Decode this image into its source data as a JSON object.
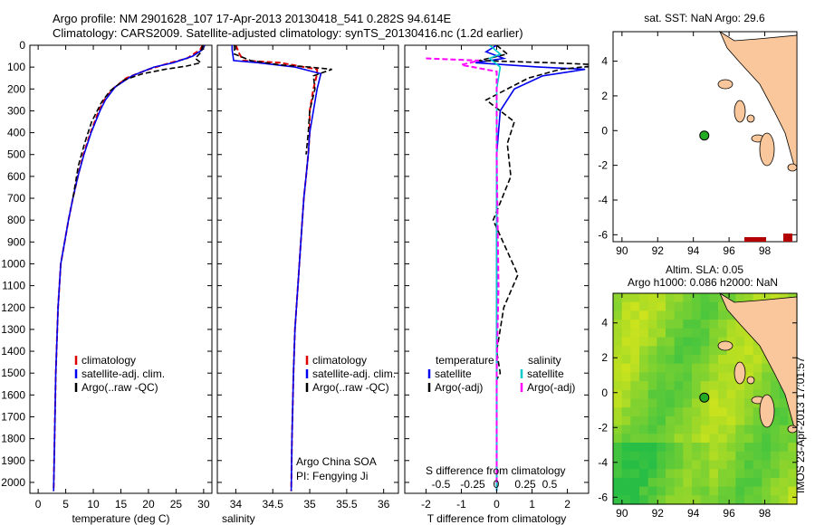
{
  "header": {
    "line1": "Argo profile: NM 2901628_107 17-Apr-2013 20130418_541 0.282S 94.614E",
    "line2": "Climatology: CARS2009. Satellite-adjusted climatology: synTS_20130416.nc (1.2d earlier)"
  },
  "side_stamp": "IMOS 23-Apr-2013 17:01:57",
  "colors": {
    "climatology": "#dd0000",
    "satellite": "#0000ee",
    "argo": "#000000",
    "sal_satellite": "#00cccc",
    "sal_argo": "#ff00ff",
    "land": "#f9c79b",
    "argo_marker": "#22aa22"
  },
  "chart_data": [
    {
      "id": "temperature",
      "type": "line",
      "xlabel": "temperature (deg C)",
      "ylabel": "",
      "xlim": [
        -1.5,
        31.5
      ],
      "ylim": [
        0,
        2050
      ],
      "xticks": [
        0,
        5,
        10,
        15,
        20,
        25,
        30
      ],
      "xtick_labels": [
        "0",
        "5",
        "10",
        "15",
        "20",
        "25",
        "30"
      ],
      "yticks": [
        0,
        100,
        200,
        300,
        400,
        500,
        600,
        700,
        800,
        900,
        1000,
        1100,
        1200,
        1300,
        1400,
        1500,
        1600,
        1700,
        1800,
        1900,
        2000
      ],
      "ytick_labels": [
        "0",
        "100",
        "200",
        "300",
        "400",
        "500",
        "600",
        "700",
        "800",
        "900",
        "1000",
        "1100",
        "1200",
        "1300",
        "1400",
        "1500",
        "1600",
        "1700",
        "1800",
        "1900",
        "2000"
      ],
      "legend": [
        "climatology",
        "satellite-adj. clim.",
        "Argo(..raw -QC)"
      ],
      "series": [
        {
          "name": "climatology",
          "style": "dashed-red",
          "x": [
            29.8,
            29.4,
            27,
            24,
            20,
            16,
            13.5,
            12,
            11,
            9.5,
            8.2,
            7.2,
            6.3,
            5.5,
            4.8,
            4.1,
            3.6,
            3.2,
            2.8
          ],
          "y": [
            0,
            20,
            60,
            80,
            110,
            150,
            200,
            250,
            300,
            400,
            500,
            600,
            700,
            800,
            900,
            1000,
            1200,
            1500,
            2040
          ]
        },
        {
          "name": "satellite-adj. clim.",
          "style": "blue",
          "x": [
            30.2,
            29.8,
            28,
            24.5,
            21,
            17,
            14,
            12.2,
            11.2,
            9.6,
            8.3,
            7.2,
            6.3,
            5.5,
            4.8,
            4.1,
            3.6,
            3.2,
            2.8
          ],
          "y": [
            0,
            20,
            50,
            80,
            100,
            140,
            190,
            250,
            300,
            400,
            500,
            600,
            700,
            800,
            900,
            1000,
            1200,
            1500,
            2040
          ]
        },
        {
          "name": "Argo(..raw -QC)",
          "style": "dashed-black",
          "x": [
            29.8,
            29.6,
            28.5,
            29.5,
            27,
            23,
            19,
            15.5,
            13,
            11.5,
            9.7,
            8.4,
            7.3,
            6.3
          ],
          "y": [
            0,
            30,
            60,
            80,
            95,
            110,
            130,
            160,
            210,
            260,
            350,
            450,
            550,
            700
          ]
        }
      ]
    },
    {
      "id": "salinity",
      "type": "line",
      "xlabel": "salinity",
      "ylabel": "",
      "xlim": [
        33.75,
        36.2
      ],
      "ylim": [
        0,
        2050
      ],
      "xticks": [
        34,
        34.5,
        35,
        35.5,
        36
      ],
      "xtick_labels": [
        "34",
        "34.5",
        "35",
        "35.5",
        "36"
      ],
      "legend": [
        "climatology",
        "satellite-adj. clim.",
        "Argo(..raw -QC)"
      ],
      "annotations": [
        "Argo China SOA",
        "PI: Fengying Ji"
      ],
      "series": [
        {
          "name": "climatology",
          "style": "dashed-red",
          "x": [
            34.0,
            34.05,
            34.1,
            34.6,
            35.1,
            35.1,
            35.05,
            35.0,
            35.0,
            34.98,
            34.95,
            34.92,
            34.88,
            34.84,
            34.8,
            34.78,
            34.76,
            34.75
          ],
          "y": [
            0,
            40,
            70,
            80,
            110,
            130,
            200,
            300,
            400,
            500,
            600,
            700,
            900,
            1100,
            1300,
            1500,
            1800,
            2040
          ]
        },
        {
          "name": "satellite-adj. clim.",
          "style": "blue",
          "x": [
            33.95,
            33.95,
            33.97,
            34.3,
            34.8,
            35.15,
            35.1,
            35.05,
            35.0,
            34.98,
            34.95,
            34.92,
            34.88,
            34.84,
            34.8,
            34.78,
            34.76,
            34.75
          ],
          "y": [
            0,
            20,
            70,
            80,
            100,
            130,
            200,
            300,
            400,
            500,
            600,
            700,
            900,
            1100,
            1300,
            1500,
            1800,
            2040
          ]
        },
        {
          "name": "Argo(..raw -QC)",
          "style": "dashed-black",
          "x": [
            33.98,
            33.98,
            34.2,
            34.6,
            35.0,
            35.3,
            35.05,
            35.07,
            35.0,
            34.98,
            34.95
          ],
          "y": [
            0,
            40,
            70,
            90,
            100,
            110,
            140,
            200,
            300,
            400,
            500
          ]
        }
      ]
    },
    {
      "id": "differences",
      "type": "line",
      "xlabel_bottom": "T difference from climatology",
      "xlabel_top": "S difference from climatology",
      "xlim": [
        -2.6,
        2.6
      ],
      "ylim": [
        0,
        2050
      ],
      "xticks_T": [
        -2,
        -1,
        0,
        1,
        2
      ],
      "xtick_labels_T": [
        "-2",
        "-1",
        "0",
        "1",
        "2"
      ],
      "xtick_labels_S": [
        "-0.5",
        "-0.25",
        "0",
        "0.25",
        "0.5"
      ],
      "legend_titles": [
        "temperature",
        "salinity"
      ],
      "legend": [
        "satellite",
        "Argo(-adj)",
        "satellite",
        "Argo(-adj)"
      ],
      "series": [
        {
          "name": "T satellite",
          "style": "blue",
          "x": [
            0,
            -0.3,
            0.2,
            -0.6,
            1.2,
            2.5,
            1.3,
            0.5,
            0.1,
            0.0,
            0.0,
            0.0,
            0.0
          ],
          "y": [
            0,
            30,
            60,
            80,
            100,
            110,
            140,
            200,
            300,
            500,
            1000,
            1500,
            2040
          ]
        },
        {
          "name": "T Argo(-adj)",
          "style": "dashed-black",
          "x": [
            0,
            0.3,
            -0.5,
            1.5,
            3.0,
            1.8,
            0.9,
            -0.3,
            0.5,
            0.3,
            0.4,
            -0.1,
            0.6,
            0.2,
            0.0,
            0.1,
            0.0
          ],
          "y": [
            0,
            40,
            70,
            80,
            90,
            110,
            150,
            250,
            350,
            450,
            600,
            800,
            1050,
            1200,
            1400,
            1500,
            1530
          ]
        },
        {
          "name": "S satellite",
          "style": "cyan",
          "x": [
            -0.2,
            0.1,
            -0.2,
            0.1,
            0.0,
            0.0,
            0.0
          ],
          "y": [
            0,
            40,
            60,
            100,
            200,
            1000,
            2040
          ]
        },
        {
          "name": "S Argo(-adj)",
          "style": "dashed-magenta",
          "x": [
            -2.0,
            -0.5,
            -1.0,
            0.0,
            0.0,
            0.05,
            0.0,
            0.0
          ],
          "y": [
            60,
            70,
            90,
            120,
            500,
            1100,
            1500,
            2000
          ]
        }
      ]
    },
    {
      "id": "sst_map",
      "type": "map",
      "title": "sat. SST: NaN Argo: 29.6",
      "xlim": [
        89.5,
        99.8
      ],
      "ylim": [
        -6.4,
        5.7
      ],
      "xticks": [
        90,
        92,
        94,
        96,
        98
      ],
      "xtick_labels": [
        "90",
        "92",
        "94",
        "96",
        "98"
      ],
      "yticks": [
        -6,
        -4,
        -2,
        0,
        2,
        4
      ],
      "ytick_labels": [
        "-6",
        "-4",
        "-2",
        "0",
        "2",
        "4"
      ],
      "argo_position": {
        "lon": 94.614,
        "lat": -0.282
      }
    },
    {
      "id": "sla_map",
      "type": "heatmap",
      "title_line1": "Altim. SLA: 0.05",
      "title_line2": "Argo h1000: 0.086 h2000: NaN",
      "xlim": [
        89.5,
        99.8
      ],
      "ylim": [
        -6.4,
        5.7
      ],
      "xticks": [
        90,
        92,
        94,
        96,
        98
      ],
      "xtick_labels": [
        "90",
        "92",
        "94",
        "96",
        "98"
      ],
      "yticks": [
        -6,
        -4,
        -2,
        0,
        2,
        4
      ],
      "ytick_labels": [
        "-6",
        "-4",
        "-2",
        "0",
        "2",
        "4"
      ],
      "argo_position": {
        "lon": 94.614,
        "lat": -0.282
      }
    }
  ]
}
